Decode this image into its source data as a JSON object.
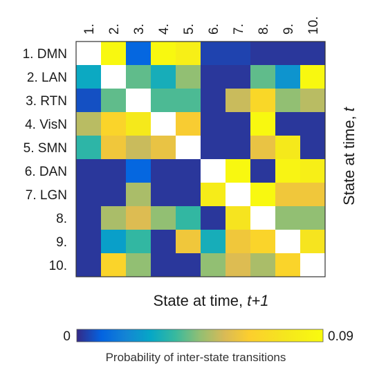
{
  "chart_data": {
    "type": "heatmap",
    "categories": [
      "1.",
      "2.",
      "3.",
      "4.",
      "5.",
      "6.",
      "7.",
      "8.",
      "9.",
      "10."
    ],
    "row_labels": [
      "1. DMN",
      "2. LAN",
      "3. RTN",
      "4. VisN",
      "5. SMN",
      "6. DAN",
      "7. LGN",
      "8.",
      "9.",
      "10."
    ],
    "col_labels": [
      "1.",
      "2.",
      "3.",
      "4.",
      "5.",
      "6.",
      "7.",
      "8.",
      "9.",
      "10."
    ],
    "values": [
      [
        null,
        0.088,
        0.01,
        0.088,
        0.082,
        0.004,
        0.004,
        0.002,
        0.002,
        0.002
      ],
      [
        0.028,
        null,
        0.04,
        0.03,
        0.045,
        0.002,
        0.002,
        0.04,
        0.022,
        0.088
      ],
      [
        0.006,
        0.04,
        null,
        0.038,
        0.038,
        0.002,
        0.052,
        0.068,
        0.045,
        0.05
      ],
      [
        0.05,
        0.066,
        0.078,
        null,
        0.062,
        0.002,
        0.002,
        0.088,
        0.002,
        0.002
      ],
      [
        0.034,
        0.06,
        0.052,
        0.058,
        null,
        0.002,
        0.002,
        0.058,
        0.078,
        0.002
      ],
      [
        0.002,
        0.002,
        0.01,
        0.002,
        0.002,
        null,
        0.088,
        0.002,
        0.085,
        0.082
      ],
      [
        0.002,
        0.002,
        0.048,
        0.002,
        0.002,
        0.08,
        null,
        0.088,
        0.06,
        0.06
      ],
      [
        0.002,
        0.048,
        0.055,
        0.045,
        0.035,
        0.002,
        0.075,
        null,
        0.045,
        0.045
      ],
      [
        0.002,
        0.025,
        0.035,
        0.002,
        0.06,
        0.03,
        0.06,
        0.066,
        null,
        0.075
      ],
      [
        0.002,
        0.066,
        0.045,
        0.002,
        0.002,
        0.045,
        0.055,
        0.048,
        0.066,
        null
      ]
    ],
    "diagonal_color": "#ffffff",
    "xlabel_prefix": "State at time, ",
    "xlabel_var": "t+1",
    "ylabel_prefix": "State at time, ",
    "ylabel_var": "t",
    "colorbar": {
      "min_label": "0",
      "max_label": "0.09",
      "vmin": 0,
      "vmax": 0.09,
      "label": "Probability of inter-state transitions",
      "colormap": "parula"
    }
  }
}
